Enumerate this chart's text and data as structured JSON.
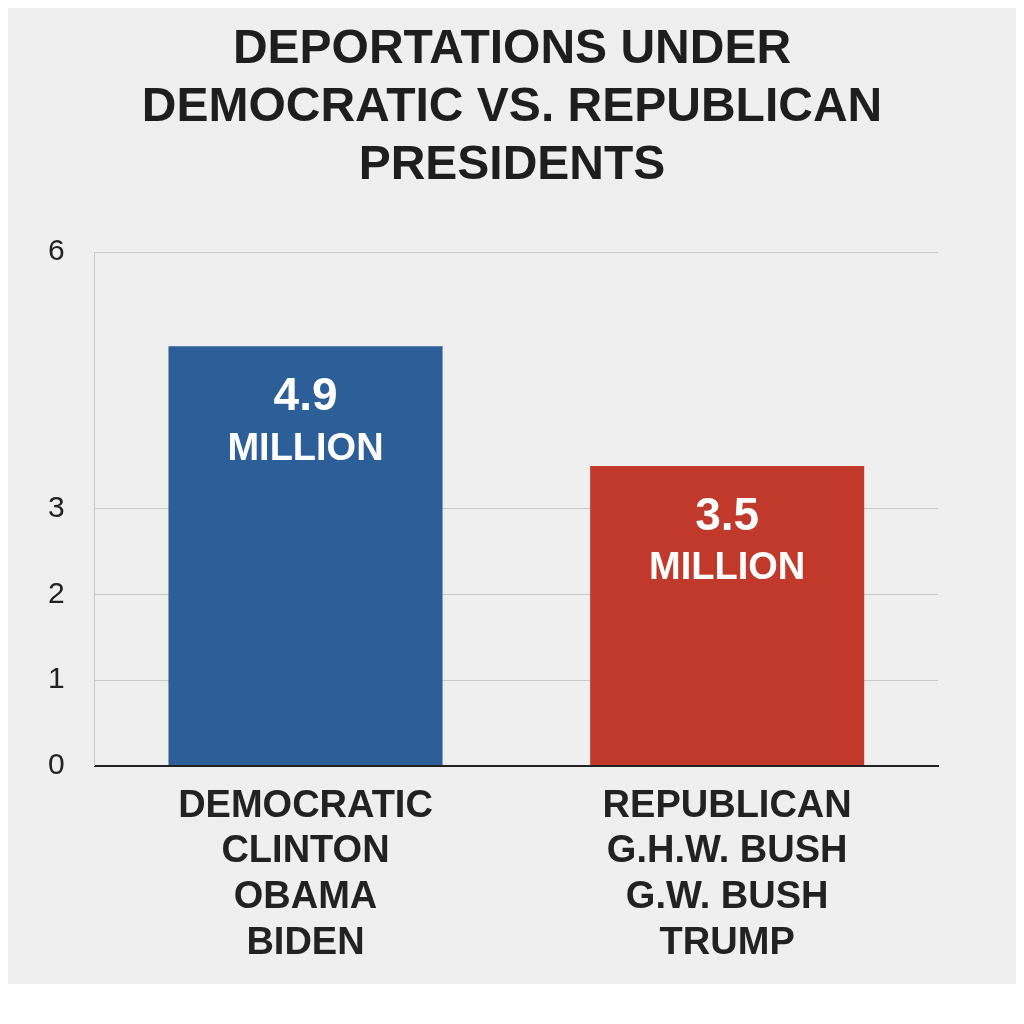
{
  "chart_data": {
    "type": "bar",
    "title": "DEPORTATIONS UNDER DEMOCRATIC VS. REPUBLICAN PRESIDENTS",
    "categories": [
      "DEMOCRATIC\nCLINTON\nOBAMA\nBIDEN",
      "REPUBLICAN\nG.H.W. BUSH\nG.W. BUSH\nTRUMP"
    ],
    "values": [
      4.9,
      3.5
    ],
    "colors": [
      "#2c5e98",
      "#c0392b"
    ],
    "value_labels": [
      "4.9 MILLION",
      "3.5 MILLION"
    ],
    "ylim": [
      0,
      6
    ],
    "yticks": [
      0,
      1,
      2,
      3,
      6
    ],
    "grid": "y"
  }
}
